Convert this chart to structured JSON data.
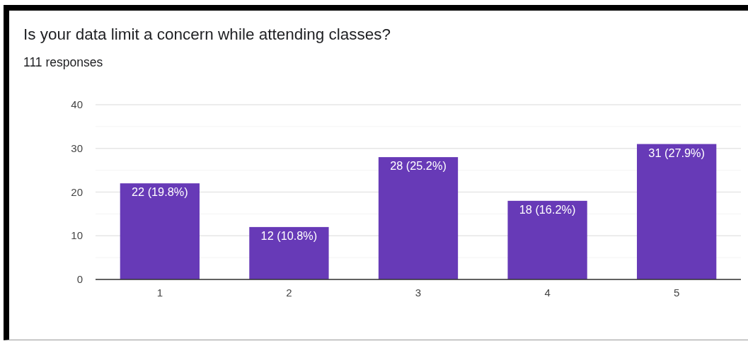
{
  "chart_data": {
    "type": "bar",
    "title": "Is your data limit a concern while attending classes?",
    "subtitle": "111 responses",
    "categories": [
      "1",
      "2",
      "3",
      "4",
      "5"
    ],
    "values": [
      22,
      12,
      28,
      18,
      31
    ],
    "color": "#673ab7",
    "value_labels": [
      "22 (19.8%)",
      "12 (10.8%)",
      "28 (25.2%)",
      "18 (16.2%)",
      "31 (27.9%)"
    ],
    "ylim": [
      0,
      40
    ],
    "yticks": [
      0,
      {
        "value": 5,
        "label": null
      },
      10,
      {
        "value": 15,
        "label": null
      },
      20,
      {
        "value": 25,
        "label": null
      },
      30,
      {
        "value": 35,
        "label": null
      },
      40
    ],
    "grid": "y"
  }
}
